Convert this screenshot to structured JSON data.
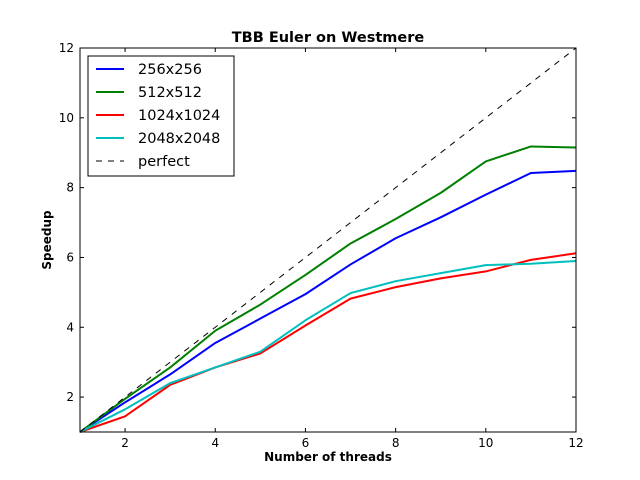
{
  "chart_data": {
    "type": "line",
    "title": "TBB Euler on Westmere",
    "xlabel": "Number of threads",
    "ylabel": "Speedup",
    "xlim": [
      1,
      12
    ],
    "ylim": [
      1,
      12
    ],
    "xticks": [
      2,
      4,
      6,
      8,
      10,
      12
    ],
    "yticks": [
      2,
      4,
      6,
      8,
      10,
      12
    ],
    "grid": false,
    "legend_position": "top-left",
    "x": [
      1,
      2,
      3,
      4,
      5,
      6,
      7,
      8,
      9,
      10,
      11,
      12
    ],
    "series": [
      {
        "name": "256x256",
        "color": "#0000ff",
        "style": "solid",
        "values": [
          1.0,
          1.85,
          2.65,
          3.55,
          4.25,
          4.95,
          5.8,
          6.55,
          7.15,
          7.8,
          8.42,
          8.48
        ]
      },
      {
        "name": "512x512",
        "color": "#008000",
        "style": "solid",
        "values": [
          1.0,
          1.95,
          2.85,
          3.9,
          4.65,
          5.5,
          6.4,
          7.1,
          7.85,
          8.75,
          9.18,
          9.15
        ]
      },
      {
        "name": "1024x1024",
        "color": "#ff0000",
        "style": "solid",
        "values": [
          1.0,
          1.45,
          2.35,
          2.85,
          3.25,
          4.05,
          4.82,
          5.15,
          5.4,
          5.6,
          5.93,
          6.12
        ]
      },
      {
        "name": "2048x2048",
        "color": "#00bfbf",
        "style": "solid",
        "values": [
          1.0,
          1.65,
          2.4,
          2.85,
          3.3,
          4.2,
          4.98,
          5.32,
          5.55,
          5.78,
          5.82,
          5.9
        ]
      },
      {
        "name": "perfect",
        "color": "#000000",
        "style": "dashed",
        "values": [
          1,
          2,
          3,
          4,
          5,
          6,
          7,
          8,
          9,
          10,
          11,
          12
        ]
      }
    ]
  }
}
